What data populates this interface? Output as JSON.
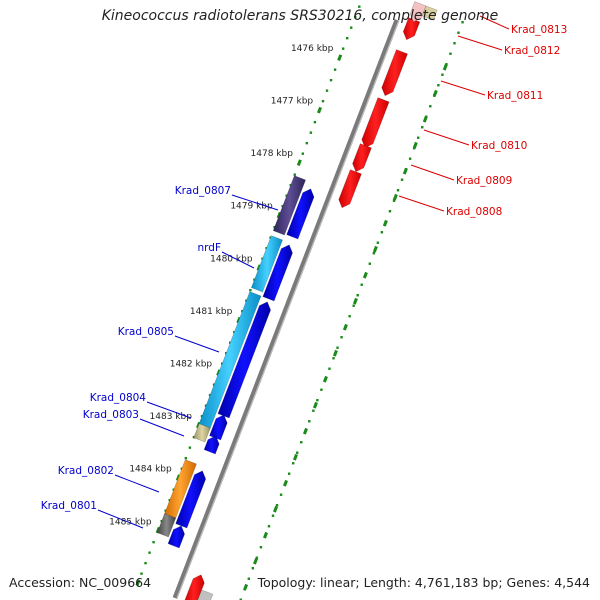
{
  "title": "Kineococcus radiotolerans SRS30216, complete genome",
  "footer": {
    "accession": "Accession: NC_009664",
    "summary": "Topology: linear; Length: 4,761,183 bp; Genes: 4,544"
  },
  "ticks": [
    "1476 kbp",
    "1477 kbp",
    "1478 kbp",
    "1479 kbp",
    "1480 kbp",
    "1481 kbp",
    "1482 kbp",
    "1483 kbp",
    "1484 kbp",
    "1485 kbp"
  ],
  "forward_labels": [
    {
      "name": "Krad_0807",
      "color": "#0000cc"
    },
    {
      "name": "nrdF",
      "color": "#0000cc"
    },
    {
      "name": "Krad_0805",
      "color": "#0000cc"
    },
    {
      "name": "Krad_0804",
      "color": "#0000cc"
    },
    {
      "name": "Krad_0803",
      "color": "#0000cc"
    },
    {
      "name": "Krad_0802",
      "color": "#0000cc"
    },
    {
      "name": "Krad_0801",
      "color": "#0000cc"
    }
  ],
  "reverse_labels": [
    {
      "name": "Krad_0813",
      "color": "#dd0000"
    },
    {
      "name": "Krad_0812",
      "color": "#dd0000"
    },
    {
      "name": "Krad_0811",
      "color": "#dd0000"
    },
    {
      "name": "Krad_0810",
      "color": "#dd0000"
    },
    {
      "name": "Krad_0809",
      "color": "#dd0000"
    },
    {
      "name": "Krad_0808",
      "color": "#dd0000"
    }
  ],
  "colors": {
    "backbone": "#888888",
    "tick_dots": "#1a8a1a",
    "forward_cds": "#0000ee",
    "reverse_cds": "#ff0000",
    "krad_0807_feature": "#4b3a7a",
    "nrdF_feature": "#2ec4f0",
    "krad_0805_feature": "#1ab0e8",
    "krad_0804_feature": "#c8c08a",
    "krad_0802_feature": "#ff8c00",
    "krad_0801_feature": "#666666"
  }
}
